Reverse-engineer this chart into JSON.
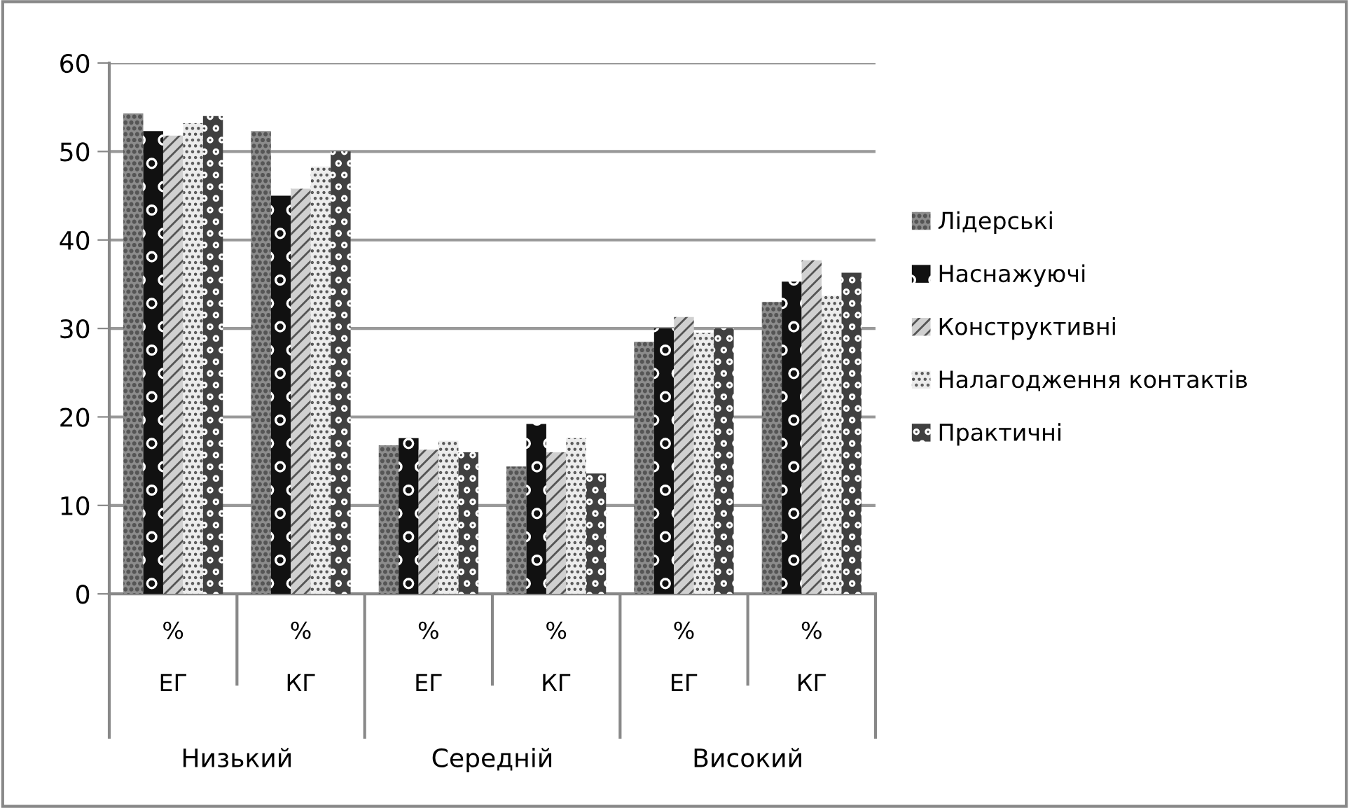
{
  "chart_data": {
    "type": "bar",
    "categories": [
      "%\n\nЕГ",
      "%\n\nКГ",
      "%\n\nЕГ",
      "%\n\nКГ",
      "%\n\nЕГ",
      "%\n\nКГ"
    ],
    "annotations": [
      "Низький",
      "Середній",
      "Високий"
    ],
    "series": [
      {
        "name": "Лідерські",
        "color": "#8c8c8c",
        "values": [
          54.3,
          52.3,
          16.8,
          14.4,
          28.5,
          33.0
        ]
      },
      {
        "name": "Наснажуючі",
        "color": "#111111",
        "values": [
          52.3,
          45.0,
          17.6,
          19.2,
          30.0,
          35.3
        ]
      },
      {
        "name": "Конструктивні",
        "color": "#d0d0d0",
        "values": [
          51.8,
          45.8,
          16.3,
          16.0,
          31.3,
          37.7
        ]
      },
      {
        "name": "Налагодження контактів",
        "color": "#ececec",
        "values": [
          53.2,
          48.3,
          17.3,
          17.6,
          29.5,
          33.7
        ]
      },
      {
        "name": "Практичні",
        "color": "#404040",
        "values": [
          54.0,
          50.0,
          16.0,
          13.6,
          30.0,
          36.3
        ]
      }
    ],
    "ylim": [
      0,
      60
    ],
    "yticks": [
      0,
      10,
      20,
      30,
      40,
      50,
      60
    ],
    "grid": "y",
    "legend": "right"
  }
}
